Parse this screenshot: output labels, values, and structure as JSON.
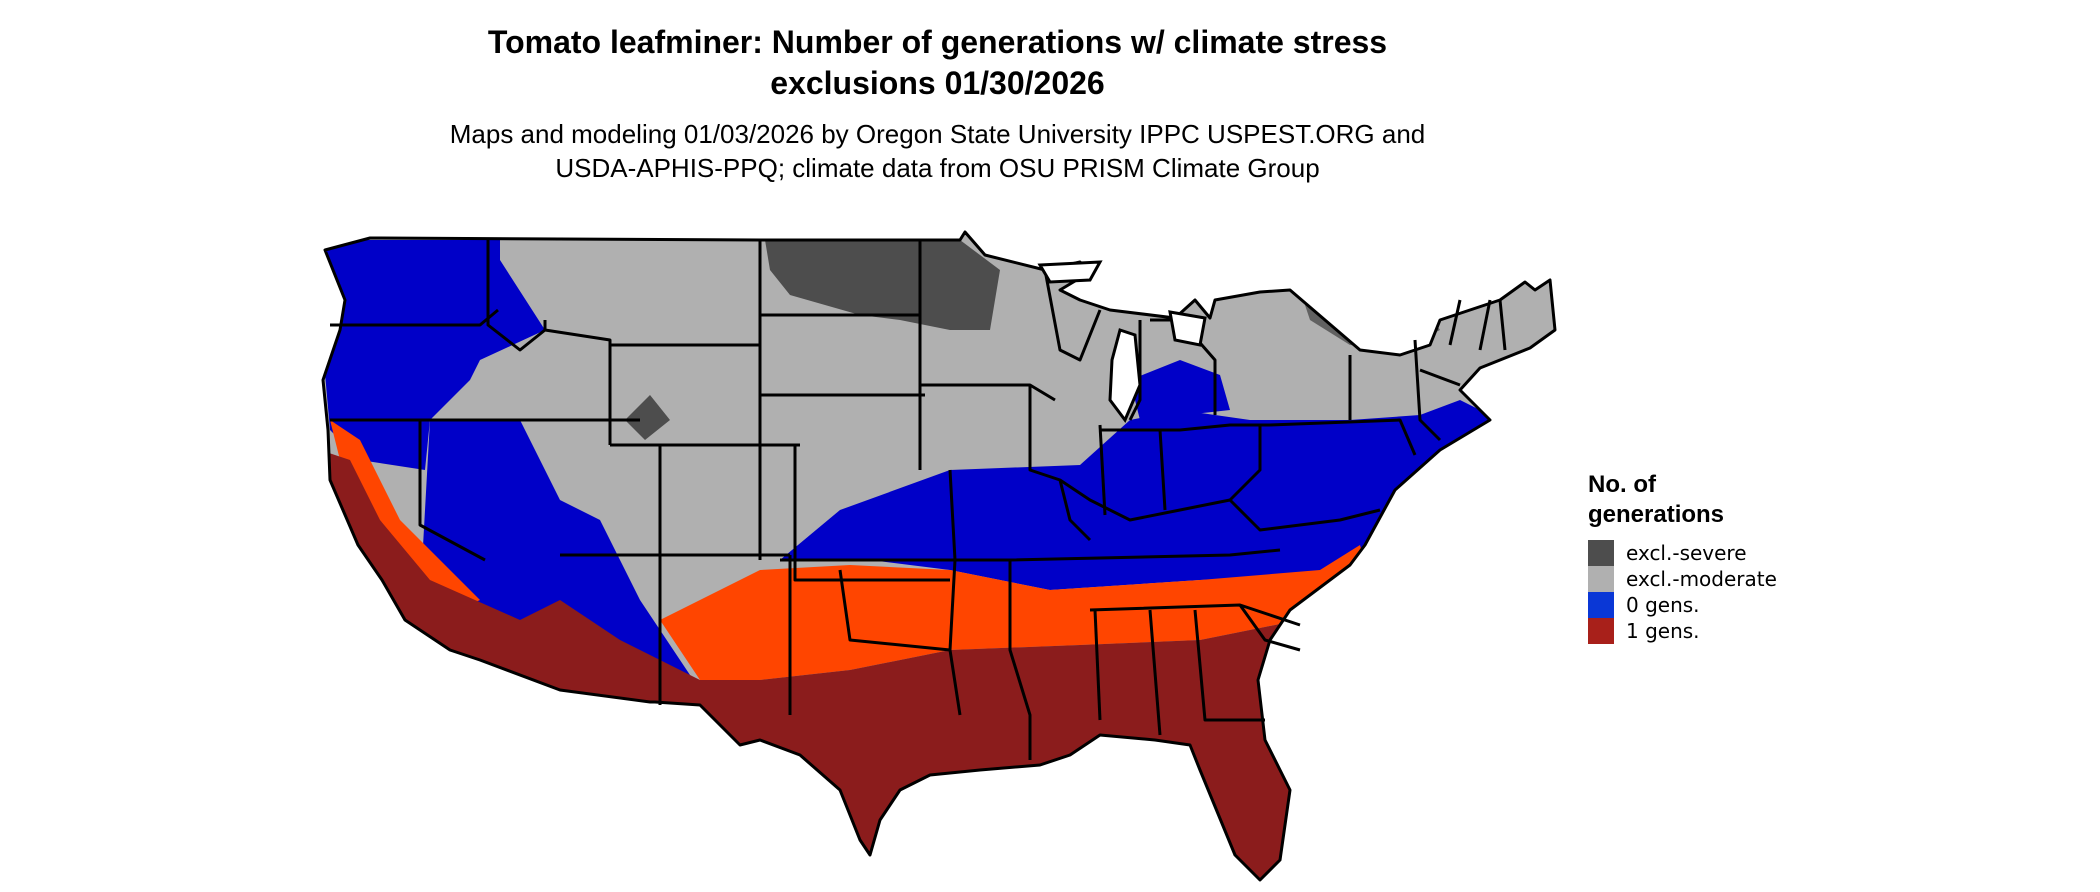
{
  "header": {
    "title_line1": "Tomato leafminer: Number of generations w/ climate stress",
    "title_line2": "exclusions 01/30/2026",
    "subtitle_line1": "Maps and modeling 01/03/2026 by Oregon State University IPPC USPEST.ORG and",
    "subtitle_line2": "USDA-APHIS-PPQ; climate data from OSU PRISM Climate Group"
  },
  "legend": {
    "title_line1": "No. of",
    "title_line2": "generations",
    "items": [
      {
        "label": "excl.-severe",
        "color": "#4d4d4d"
      },
      {
        "label": "excl.-moderate",
        "color": "#b0b0b0"
      },
      {
        "label": "0 gens.",
        "color": "#0a37d6"
      },
      {
        "label": "1 gens.",
        "color": "#a8201a"
      }
    ]
  },
  "colors": {
    "severe": "#4d4d4d",
    "moderate": "#b0b0b0",
    "zero": "#0000c8",
    "one_dark": "#8b1c1c",
    "one_light": "#ff4500",
    "border": "#000000"
  }
}
